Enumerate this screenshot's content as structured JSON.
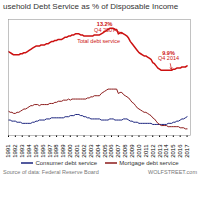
{
  "chart_data": {
    "type": "line",
    "title": "usehold Debt Service as % of Disposable Income",
    "x": [
      1991.0,
      1991.25,
      1991.5,
      1991.75,
      1992.0,
      1992.25,
      1992.5,
      1992.75,
      1993.0,
      1993.25,
      1993.5,
      1993.75,
      1994.0,
      1994.25,
      1994.5,
      1994.75,
      1995.0,
      1995.25,
      1995.5,
      1995.75,
      1996.0,
      1996.25,
      1996.5,
      1996.75,
      1997.0,
      1997.25,
      1997.5,
      1997.75,
      1998.0,
      1998.25,
      1998.5,
      1998.75,
      1999.0,
      1999.25,
      1999.5,
      1999.75,
      2000.0,
      2000.25,
      2000.5,
      2000.75,
      2001.0,
      2001.25,
      2001.5,
      2001.75,
      2002.0,
      2002.25,
      2002.5,
      2002.75,
      2003.0,
      2003.25,
      2003.5,
      2003.75,
      2004.0,
      2004.25,
      2004.5,
      2004.75,
      2005.0,
      2005.25,
      2005.5,
      2005.75,
      2006.0,
      2006.25,
      2006.5,
      2006.75,
      2007.0,
      2007.25,
      2007.5,
      2007.75,
      2008.0,
      2008.25,
      2008.5,
      2008.75,
      2009.0,
      2009.25,
      2009.5,
      2009.75,
      2010.0,
      2010.25,
      2010.5,
      2010.75,
      2011.0,
      2011.25,
      2011.5,
      2011.75,
      2012.0,
      2012.25,
      2012.5,
      2012.75,
      2013.0,
      2013.25,
      2013.5,
      2013.75,
      2014.0,
      2014.25,
      2014.5,
      2014.75,
      2015.0,
      2015.25,
      2015.5,
      2015.75,
      2016.0,
      2016.25,
      2016.5,
      2016.75,
      2017.0
    ],
    "series": [
      {
        "color": "#cc1111",
        "values": [
          11.6,
          11.5,
          11.4,
          11.3,
          11.3,
          11.3,
          11.3,
          11.4,
          11.4,
          11.5,
          11.5,
          11.6,
          11.7,
          11.8,
          11.9,
          12.0,
          12.1,
          12.1,
          12.1,
          12.2,
          12.2,
          12.2,
          12.3,
          12.3,
          12.4,
          12.5,
          12.5,
          12.6,
          12.6,
          12.7,
          12.7,
          12.7,
          12.8,
          12.9,
          12.9,
          13.0,
          13.0,
          13.1,
          13.1,
          13.2,
          13.2,
          13.2,
          13.1,
          13.1,
          13.0,
          13.0,
          13.0,
          13.0,
          13.0,
          13.0,
          13.1,
          13.1,
          13.1,
          13.1,
          13.2,
          13.3,
          13.4,
          13.5,
          13.6,
          13.7,
          13.7,
          13.7,
          13.6,
          13.6,
          13.2,
          13.3,
          13.3,
          13.2,
          13.1,
          13.0,
          12.8,
          12.5,
          12.3,
          12.1,
          11.9,
          11.7,
          11.5,
          11.4,
          11.3,
          11.2,
          11.2,
          11.1,
          11.0,
          10.9,
          10.6,
          10.5,
          10.3,
          10.1,
          10.0,
          9.9,
          9.9,
          9.9,
          9.9,
          9.9,
          9.9,
          9.9,
          10.0,
          10.0,
          10.1,
          10.1,
          10.1,
          10.2,
          10.2,
          10.2,
          10.3
        ]
      },
      {
        "name": "Consumer debt service",
        "color": "#1a237e",
        "values": [
          5.4,
          5.4,
          5.3,
          5.3,
          5.3,
          5.2,
          5.2,
          5.2,
          5.1,
          5.1,
          5.1,
          5.1,
          5.1,
          5.1,
          5.2,
          5.2,
          5.3,
          5.3,
          5.4,
          5.4,
          5.4,
          5.4,
          5.5,
          5.5,
          5.5,
          5.6,
          5.6,
          5.6,
          5.6,
          5.6,
          5.6,
          5.6,
          5.6,
          5.7,
          5.7,
          5.7,
          5.8,
          5.8,
          5.8,
          5.9,
          5.9,
          5.9,
          5.8,
          5.8,
          5.7,
          5.7,
          5.6,
          5.6,
          5.5,
          5.5,
          5.5,
          5.5,
          5.5,
          5.5,
          5.4,
          5.4,
          5.4,
          5.4,
          5.4,
          5.5,
          5.5,
          5.5,
          5.4,
          5.4,
          5.4,
          5.4,
          5.4,
          5.5,
          5.5,
          5.5,
          5.4,
          5.3,
          5.3,
          5.2,
          5.2,
          5.2,
          5.1,
          5.1,
          5.1,
          5.1,
          5.1,
          5.1,
          5.1,
          5.1,
          5.0,
          5.0,
          5.0,
          5.0,
          5.0,
          5.0,
          5.0,
          5.0,
          5.0,
          5.1,
          5.1,
          5.1,
          5.2,
          5.2,
          5.3,
          5.3,
          5.4,
          5.5,
          5.5,
          5.6,
          5.7
        ]
      },
      {
        "name": "Mortgage debt service",
        "color": "#8b1a1a",
        "values": [
          6.2,
          6.1,
          6.1,
          6.0,
          6.0,
          6.1,
          6.1,
          6.2,
          6.3,
          6.4,
          6.4,
          6.5,
          6.6,
          6.7,
          6.7,
          6.8,
          6.8,
          6.8,
          6.7,
          6.8,
          6.8,
          6.8,
          6.8,
          6.8,
          6.9,
          6.9,
          6.9,
          7.0,
          7.0,
          7.1,
          7.1,
          7.1,
          7.2,
          7.2,
          7.2,
          7.3,
          7.2,
          7.3,
          7.3,
          7.3,
          7.3,
          7.3,
          7.3,
          7.3,
          7.3,
          7.3,
          7.4,
          7.4,
          7.5,
          7.5,
          7.6,
          7.6,
          7.6,
          7.6,
          7.8,
          7.9,
          8.0,
          8.1,
          8.2,
          8.2,
          8.2,
          8.2,
          8.2,
          8.2,
          7.8,
          7.9,
          7.9,
          7.7,
          7.6,
          7.5,
          7.4,
          7.2,
          7.0,
          6.9,
          6.7,
          6.5,
          6.4,
          6.3,
          6.2,
          6.1,
          6.1,
          6.0,
          5.9,
          5.8,
          5.6,
          5.5,
          5.3,
          5.1,
          5.0,
          4.9,
          4.9,
          4.9,
          4.9,
          4.8,
          4.8,
          4.8,
          4.8,
          4.8,
          4.8,
          4.8,
          4.7,
          4.7,
          4.7,
          4.6,
          4.6
        ]
      }
    ],
    "xlim": [
      1991.0,
      2017.5
    ],
    "xticks": [
      1991,
      1992,
      1993,
      1994,
      1995,
      1996,
      1997,
      1998,
      1999,
      2000,
      2001,
      2002,
      2003,
      2004,
      2005,
      2006,
      2007,
      2008,
      2009,
      2010,
      2011,
      2012,
      2013,
      2014,
      2015,
      2016,
      2017
    ],
    "ylim": [
      4.0,
      14.5
    ],
    "tick_labels": "x",
    "grid": false,
    "legend": "bottom",
    "annotations": [
      {
        "text": "13.2%",
        "x": 2005.0,
        "y": 13.9,
        "arrow_x": 2007.75,
        "arrow_y": 13.2
      },
      {
        "text": "Q4 2007",
        "x": 2005.0,
        "y": 13.4
      },
      {
        "text": "9.9%",
        "x": 2014.3,
        "y": 11.3,
        "arrow_x": 2014.75,
        "arrow_y": 9.9
      },
      {
        "text": "Q4 2014",
        "x": 2014.3,
        "y": 10.8
      },
      {
        "text": "Total debt service",
        "x": 2001.0,
        "y": 12.35
      }
    ],
    "source": "Source of data: Federal Reserve Board",
    "watermark": "WOLFSTREET.com"
  }
}
